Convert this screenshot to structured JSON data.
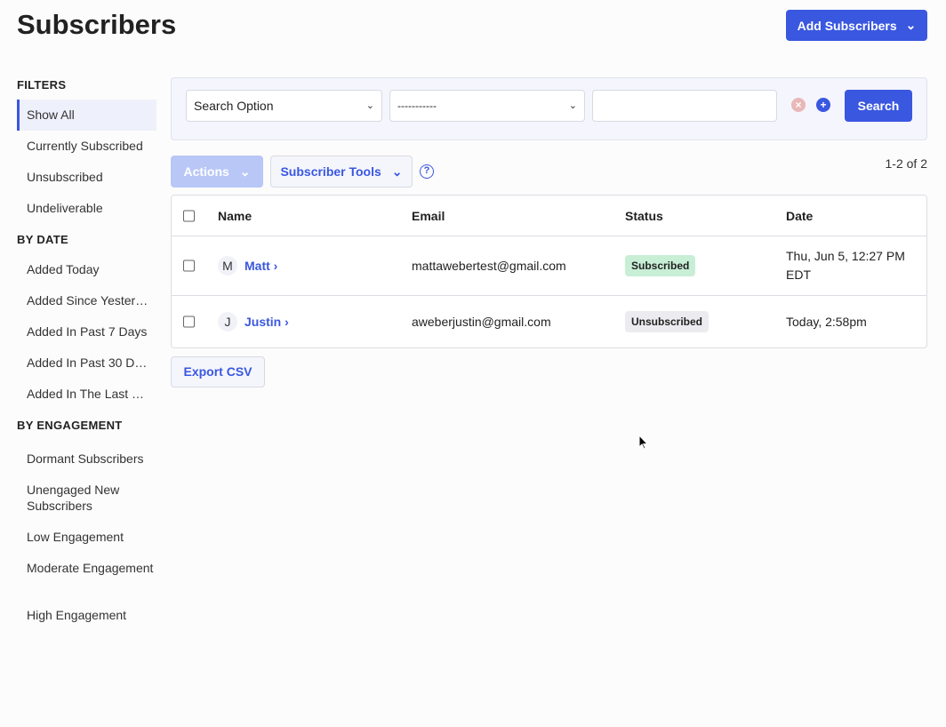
{
  "header": {
    "title": "Subscribers",
    "add_button": "Add Subscribers"
  },
  "sidebar": {
    "sections": [
      {
        "title": "FILTERS",
        "items": [
          "Show All",
          "Currently Subscribed",
          "Unsubscribed",
          "Undeliverable"
        ]
      },
      {
        "title": "BY DATE",
        "items": [
          "Added Today",
          "Added Since Yester…",
          "Added In Past 7 Days",
          "Added In Past 30 D…",
          "Added In The Last …"
        ]
      },
      {
        "title": "BY ENGAGEMENT",
        "items": [
          "Dormant Subscribers",
          "Unengaged New Subscribers",
          "Low Engagement",
          "Moderate Engagement",
          "High Engagement"
        ]
      }
    ],
    "active": "Show All"
  },
  "search": {
    "option": "Search Option",
    "operator": "-----------",
    "value": "",
    "button": "Search"
  },
  "toolbar": {
    "actions": "Actions",
    "tools": "Subscriber Tools",
    "help": "?",
    "count": "1-2 of 2"
  },
  "table": {
    "columns": [
      "Name",
      "Email",
      "Status",
      "Date"
    ],
    "rows": [
      {
        "initial": "M",
        "name": "Matt",
        "email": "mattawebertest@gmail.com",
        "status": "Subscribed",
        "date": "Thu, Jun 5, 12:27 PM EDT"
      },
      {
        "initial": "J",
        "name": "Justin",
        "email": "aweberjustin@gmail.com",
        "status": "Unsubscribed",
        "date": "Today, 2:58pm"
      }
    ]
  },
  "export_button": "Export CSV",
  "colors": {
    "accent": "#3a57e0",
    "subscribed_bg": "#c8efd6",
    "unsubscribed_bg": "#ececf0"
  }
}
